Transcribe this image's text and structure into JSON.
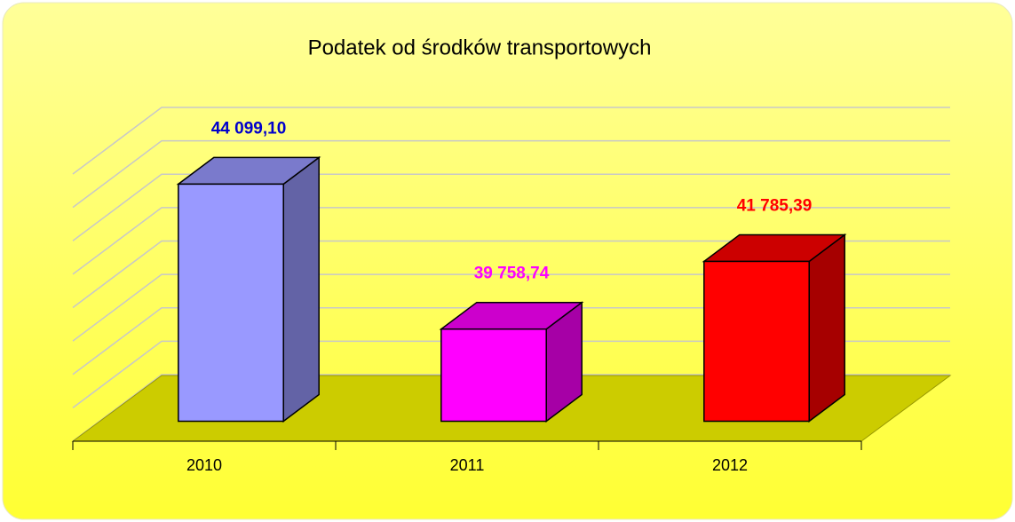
{
  "chart_data": {
    "type": "bar3d",
    "title": "Podatek od środków transportowych",
    "categories": [
      "2010",
      "2011",
      "2012"
    ],
    "values": [
      44099.1,
      39758.74,
      41785.39
    ],
    "value_labels": [
      "44 099,10",
      "39 758,74",
      "41 785,39"
    ],
    "colors": [
      "#9999ff",
      "#ff00ff",
      "#ff0000"
    ],
    "label_colors": [
      "#0000cc",
      "#ff00ff",
      "#ff0000"
    ],
    "ylim": [
      37000,
      45000
    ],
    "yticks": [
      37000,
      38000,
      39000,
      40000,
      41000,
      42000,
      43000,
      44000,
      45000
    ],
    "grid": true
  }
}
